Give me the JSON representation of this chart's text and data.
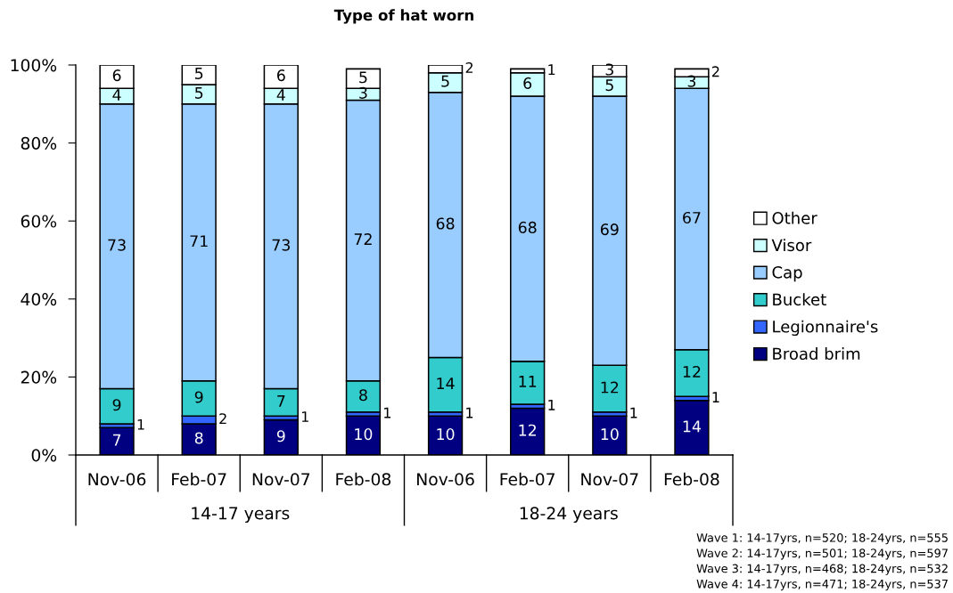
{
  "chart_data": {
    "type": "bar",
    "title": "Type of hat worn",
    "categories": [
      "Nov-06",
      "Feb-07",
      "Nov-07",
      "Feb-08",
      "Nov-06",
      "Feb-07",
      "Nov-07",
      "Feb-08"
    ],
    "series": [
      {
        "name": "Broad brim",
        "color": "#000080",
        "values": [
          7,
          8,
          9,
          10,
          10,
          12,
          10,
          14
        ]
      },
      {
        "name": "Legionnaire's",
        "color": "#3366ff",
        "values": [
          1,
          2,
          1,
          1,
          1,
          1,
          1,
          1
        ]
      },
      {
        "name": "Bucket",
        "color": "#33cccc",
        "values": [
          9,
          9,
          7,
          8,
          14,
          11,
          12,
          12
        ]
      },
      {
        "name": "Cap",
        "color": "#99ccff",
        "values": [
          73,
          71,
          73,
          72,
          68,
          68,
          69,
          67
        ]
      },
      {
        "name": "Visor",
        "color": "#ccffff",
        "values": [
          4,
          5,
          4,
          3,
          5,
          6,
          5,
          3
        ]
      },
      {
        "name": "Other",
        "color": "#ffffff",
        "values": [
          6,
          5,
          6,
          5,
          2,
          1,
          3,
          2
        ]
      }
    ],
    "stacked": true,
    "ylim": [
      0,
      100
    ],
    "yticks": [
      {
        "value": 0,
        "label": "0%"
      },
      {
        "value": 20,
        "label": "20%"
      },
      {
        "value": 40,
        "label": "40%"
      },
      {
        "value": 60,
        "label": "60%"
      },
      {
        "value": 80,
        "label": "80%"
      },
      {
        "value": 100,
        "label": "100%"
      }
    ],
    "data_labels": true,
    "legend": "right",
    "annotations": [
      "14-17 years",
      "18-24 years",
      "Wave 1: 14-17yrs, n=520; 18-24yrs, n=555",
      "Wave 2: 14-17yrs, n=501; 18-24yrs, n=597",
      "Wave 3: 14-17yrs, n=468; 18-24yrs, n=532",
      "Wave 4: 14-17yrs, n=471; 18-24yrs, n=537"
    ]
  }
}
